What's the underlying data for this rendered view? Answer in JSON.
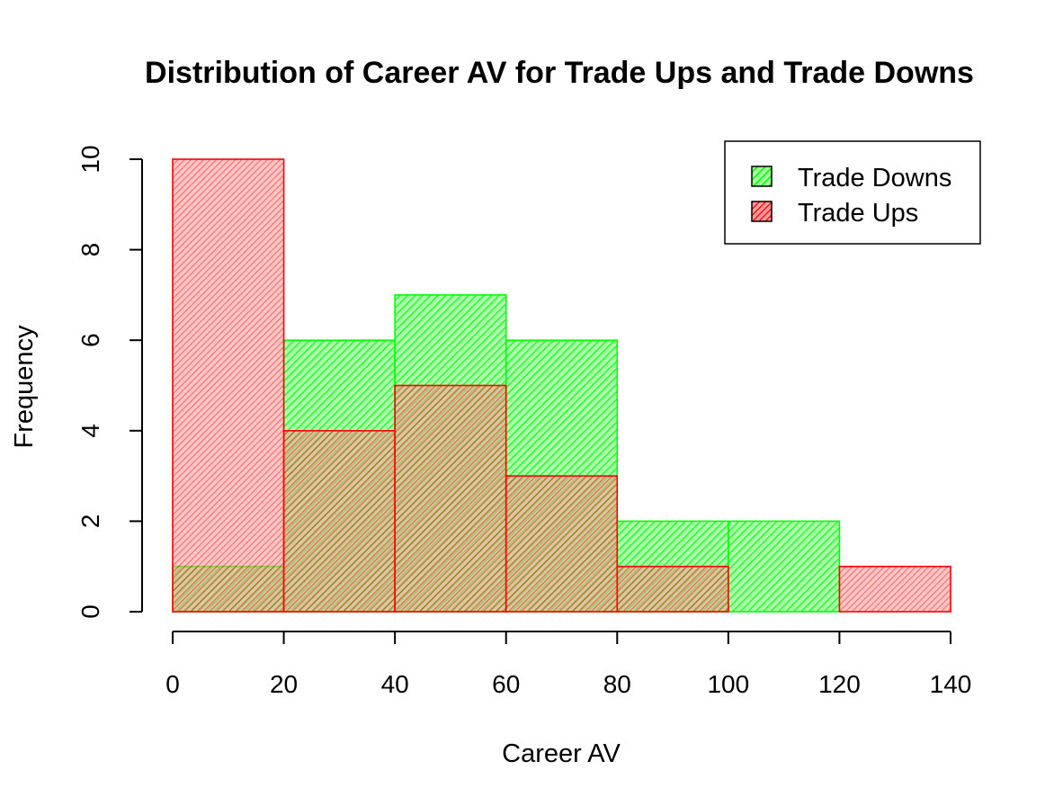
{
  "chart_data": {
    "type": "bar",
    "title": "Distribution of Career AV for Trade Ups and Trade Downs",
    "xlabel": "Career AV",
    "ylabel": "Frequency",
    "bins": [
      [
        0,
        20
      ],
      [
        20,
        40
      ],
      [
        40,
        60
      ],
      [
        60,
        80
      ],
      [
        80,
        100
      ],
      [
        100,
        120
      ],
      [
        120,
        140
      ]
    ],
    "xlim": [
      0,
      140
    ],
    "ylim": [
      0,
      10
    ],
    "x_ticks": [
      0,
      20,
      40,
      60,
      80,
      100,
      120,
      140
    ],
    "y_ticks": [
      0,
      2,
      4,
      6,
      8,
      10
    ],
    "grid": false,
    "legend_position": "top-right",
    "series": [
      {
        "name": "Trade Downs",
        "values": [
          1,
          6,
          7,
          6,
          2,
          2,
          0
        ],
        "color": "#00ff00"
      },
      {
        "name": "Trade Ups",
        "values": [
          10,
          4,
          5,
          3,
          1,
          0,
          1
        ],
        "color": "#ff0000"
      }
    ]
  }
}
